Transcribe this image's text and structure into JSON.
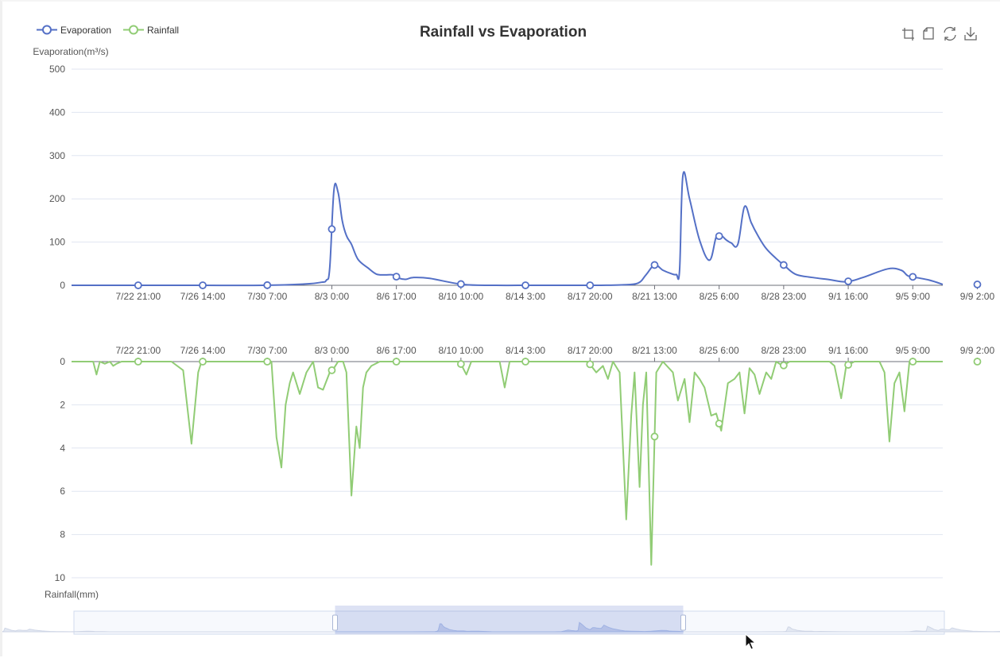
{
  "chart_data": {
    "type": "line",
    "title": "Rainfall vs Evaporation",
    "legend": {
      "placement": "top-left",
      "items": [
        {
          "name": "Evaporation",
          "color": "#5470c6"
        },
        {
          "name": "Rainfall",
          "color": "#91cc75"
        }
      ]
    },
    "x_tick_labels": [
      "7/22 21:00",
      "7/26 14:00",
      "7/30 7:00",
      "8/3 0:00",
      "8/6 17:00",
      "8/10 10:00",
      "8/14 3:00",
      "8/17 20:00",
      "8/21 13:00",
      "8/25 6:00",
      "8/28 23:00",
      "9/1 16:00",
      "9/5 9:00",
      "9/9 2:00"
    ],
    "x_range_days": [
      -0.5,
      51.8
    ],
    "grid": true,
    "evaporation": {
      "ylabel": "Evaporation(m³/s)",
      "ylim": [
        0,
        500
      ],
      "yticks": [
        0,
        100,
        200,
        300,
        400,
        500
      ],
      "color": "#5470c6",
      "x": [
        -0.5,
        3,
        7,
        11,
        13.5,
        14.5,
        14.8,
        15.0,
        15.25,
        15.5,
        15.75,
        16,
        16.3,
        16.7,
        17.3,
        17.8,
        18.3,
        18.8,
        19.2,
        19.6,
        20,
        21,
        23,
        25,
        27,
        29,
        31,
        32.5,
        33.5,
        34.0,
        34.5,
        35.0,
        35.5,
        35.8,
        36.0,
        36.2,
        36.6,
        37.2,
        37.8,
        38.2,
        38.5,
        38.8,
        39.1,
        39.5,
        39.9,
        40.3,
        40.7,
        41.2,
        41.8,
        42.4,
        43,
        44,
        45,
        46,
        47,
        48.5,
        49.3,
        49.7,
        50.2,
        51,
        51.8
      ],
      "y": [
        0,
        0,
        0,
        0,
        3,
        7,
        12,
        40,
        220,
        215,
        150,
        115,
        95,
        60,
        40,
        26,
        24,
        24,
        16,
        14,
        18,
        16,
        2,
        0,
        0,
        0,
        0,
        1,
        5,
        25,
        47,
        35,
        27,
        25,
        35,
        254,
        200,
        105,
        58,
        112,
        115,
        105,
        98,
        95,
        182,
        145,
        115,
        85,
        62,
        42,
        25,
        18,
        13,
        8,
        18,
        38,
        35,
        22,
        18,
        12,
        2
      ]
    },
    "rainfall": {
      "ylabel": "Rainfall(mm)",
      "ylim": [
        0,
        10
      ],
      "inverted": true,
      "yticks": [
        0,
        2,
        4,
        6,
        8,
        10
      ],
      "color": "#91cc75",
      "x": [
        -0.5,
        0.8,
        1.0,
        1.2,
        1.5,
        1.8,
        2.0,
        2.2,
        2.5,
        3,
        5.5,
        6.2,
        6.7,
        7.1,
        7.3,
        7.6,
        7.9,
        8,
        10,
        11.5,
        11.8,
        12.1,
        12.35,
        12.6,
        12.8,
        13.2,
        13.6,
        14.0,
        14.3,
        14.6,
        15.0,
        15.25,
        15.5,
        15.8,
        16.0,
        16.3,
        16.6,
        16.8,
        17.0,
        17.2,
        17.5,
        18,
        20,
        22.8,
        23.2,
        23.5,
        25.2,
        25.5,
        25.8,
        27,
        30.5,
        31.0,
        31.4,
        31.7,
        32.0,
        32.4,
        32.8,
        33.1,
        33.3,
        33.6,
        33.8,
        34.0,
        34.3,
        34.6,
        35,
        35.6,
        35.9,
        36.3,
        36.6,
        36.9,
        37.2,
        37.5,
        37.9,
        38.2,
        38.5,
        38.9,
        39.3,
        39.6,
        39.9,
        40.2,
        40.5,
        40.8,
        41.2,
        41.5,
        41.8,
        42.2,
        42.6,
        43,
        44,
        45,
        45.3,
        45.7,
        46.0,
        46.5,
        48.0,
        48.3,
        48.6,
        48.9,
        49.2,
        49.5,
        49.8,
        51.0,
        51.8
      ],
      "y": [
        0,
        0,
        0.6,
        0,
        0.1,
        0,
        0.2,
        0.1,
        0,
        0,
        0,
        0.4,
        3.8,
        0.5,
        0,
        0,
        0,
        0,
        0,
        0,
        3.5,
        4.9,
        2.0,
        1.0,
        0.5,
        1.5,
        0.5,
        0,
        1.2,
        1.3,
        0.5,
        0.3,
        0,
        0,
        0.5,
        6.2,
        3.0,
        4.0,
        1.2,
        0.5,
        0.2,
        0,
        0,
        0,
        0.6,
        0,
        0,
        1.2,
        0,
        0,
        0,
        0.5,
        0.2,
        0.8,
        0,
        0.5,
        7.3,
        2.5,
        0.5,
        5.8,
        2.0,
        0.5,
        9.4,
        0.5,
        0,
        0.5,
        1.8,
        0.8,
        2.8,
        0.5,
        0.8,
        1.2,
        2.5,
        2.4,
        3.2,
        1.0,
        0.8,
        0.5,
        2.4,
        0.3,
        0.6,
        1.5,
        0.5,
        0.8,
        0,
        0.2,
        0,
        0,
        0,
        0,
        0.2,
        1.7,
        0.2,
        0,
        0,
        0.5,
        3.7,
        1.0,
        0.5,
        2.3,
        0,
        0,
        0
      ]
    }
  },
  "toolbox": {
    "items": [
      "zoom-icon",
      "zoom-reset-icon",
      "restore-icon",
      "download-icon"
    ]
  },
  "data_zoom": {
    "window_start_fraction": 0.3,
    "window_end_fraction": 0.7,
    "handle_color": "#5470c6"
  }
}
